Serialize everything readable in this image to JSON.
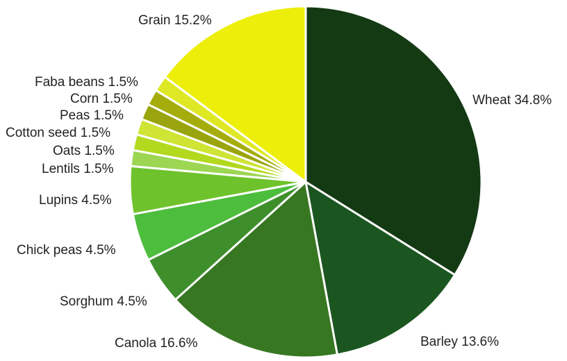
{
  "chart_data": {
    "type": "pie",
    "title": "",
    "start_angle_deg": 0,
    "direction": "clockwise",
    "slices": [
      {
        "label": "Wheat",
        "value": 34.8,
        "display": "Wheat 34.8%",
        "color": "#143a14"
      },
      {
        "label": "Barley",
        "value": 13.6,
        "display": "Barley 13.6%",
        "color": "#1b5620"
      },
      {
        "label": "Canola",
        "value": 16.6,
        "display": "Canola 16.6%",
        "color": "#377722"
      },
      {
        "label": "Sorghum",
        "value": 4.5,
        "display": "Sorghum 4.5%",
        "color": "#3e8f2c"
      },
      {
        "label": "Chick peas",
        "value": 4.5,
        "display": "Chick peas 4.5%",
        "color": "#4dbd3d"
      },
      {
        "label": "Lupins",
        "value": 4.5,
        "display": "Lupins 4.5%",
        "color": "#6ec22b"
      },
      {
        "label": "Lentils",
        "value": 1.5,
        "display": "Lentils 1.5%",
        "color": "#9cd653"
      },
      {
        "label": "Oats",
        "value": 1.5,
        "display": "Oats 1.5%",
        "color": "#b2d91e"
      },
      {
        "label": "Cotton seed",
        "value": 1.5,
        "display": "Cotton seed 1.5%",
        "color": "#cfe435"
      },
      {
        "label": "Peas",
        "value": 1.5,
        "display": "Peas 1.5%",
        "color": "#9aa40c"
      },
      {
        "label": "Corn",
        "value": 1.5,
        "display": "Corn 1.5%",
        "color": "#a5ad0d"
      },
      {
        "label": "Faba beans",
        "value": 1.5,
        "display": "Faba beans 1.5%",
        "color": "#dfe824"
      },
      {
        "label": "Grain",
        "value": 15.2,
        "display": "Grain 15.2%",
        "color": "#eeee0b"
      }
    ]
  }
}
